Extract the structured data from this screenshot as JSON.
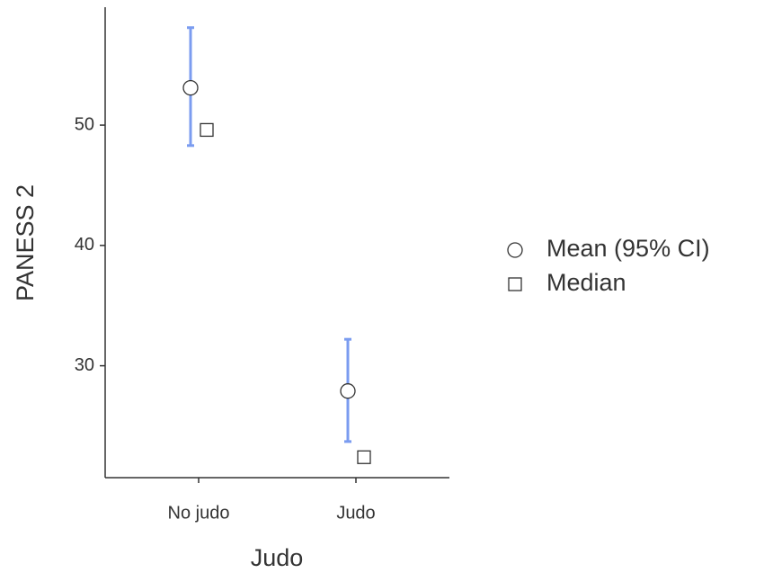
{
  "chart_data": {
    "type": "errorbar",
    "x_label": "Judo",
    "y_label": "PANESS 2",
    "categories": [
      "No judo",
      "Judo"
    ],
    "series": [
      {
        "name": "Mean (95% CI)",
        "marker": "circle",
        "color": "#7b9cf0",
        "values": [
          53.1,
          27.9
        ],
        "lower": [
          48.3,
          23.7
        ],
        "upper": [
          58.1,
          32.2
        ]
      },
      {
        "name": "Median",
        "marker": "square",
        "values": [
          49.6,
          22.4
        ]
      }
    ],
    "ylim": [
      20.7,
      59.8
    ],
    "yticks": [
      30,
      40,
      50
    ],
    "legend": "right"
  }
}
